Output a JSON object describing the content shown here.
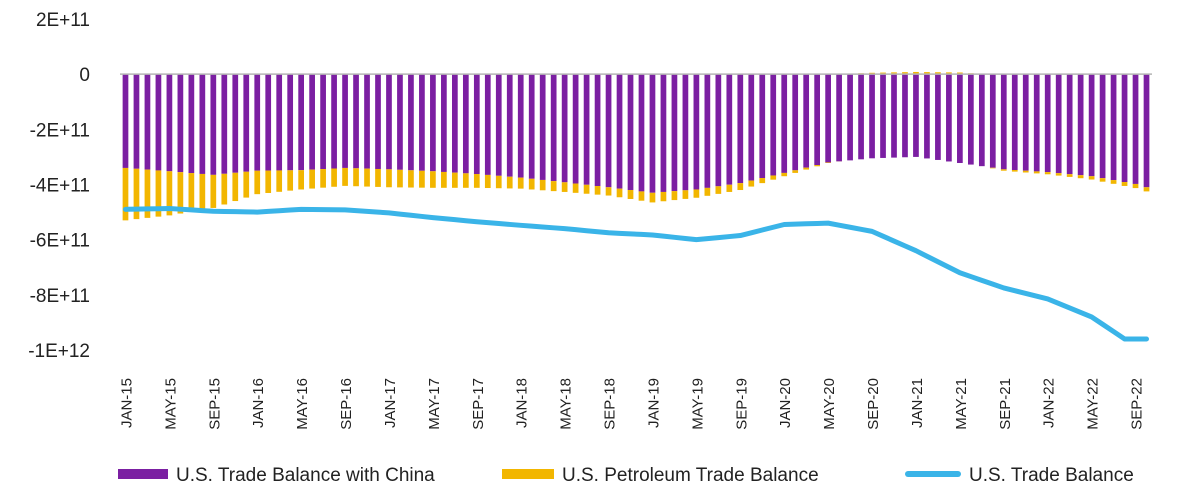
{
  "chart_data": {
    "type": "bar",
    "stacked": true,
    "grid": false,
    "legend_position": "bottom",
    "ylim": [
      -1000000000000,
      200000000000
    ],
    "y_ticks": [
      {
        "value": 200000000000,
        "label": "2E+11"
      },
      {
        "value": 0,
        "label": "0"
      },
      {
        "value": -200000000000,
        "label": "-2E+11"
      },
      {
        "value": -400000000000,
        "label": "-4E+11"
      },
      {
        "value": -600000000000,
        "label": "-6E+11"
      },
      {
        "value": -800000000000,
        "label": "-8E+11"
      },
      {
        "value": -1000000000000,
        "label": "-1E+12"
      }
    ],
    "x_ticks": [
      "JAN-15",
      "MAY-15",
      "SEP-15",
      "JAN-16",
      "MAY-16",
      "SEP-16",
      "JAN-17",
      "MAY-17",
      "SEP-17",
      "JAN-18",
      "MAY-18",
      "SEP-18",
      "JAN-19",
      "MAY-19",
      "SEP-19",
      "JAN-20",
      "MAY-20",
      "SEP-20",
      "JAN-21",
      "MAY-21",
      "SEP-21",
      "JAN-22",
      "MAY-22",
      "SEP-22"
    ],
    "months_per_tick": 4,
    "series": [
      {
        "name": "U.S. Trade Balance with China",
        "kind": "bar",
        "color": "#7B1FA2",
        "key_values_billions": [
          [
            0,
            -340
          ],
          [
            4,
            -352
          ],
          [
            8,
            -365
          ],
          [
            12,
            -350
          ],
          [
            16,
            -348
          ],
          [
            20,
            -340
          ],
          [
            24,
            -345
          ],
          [
            28,
            -352
          ],
          [
            32,
            -362
          ],
          [
            36,
            -375
          ],
          [
            40,
            -392
          ],
          [
            44,
            -410
          ],
          [
            48,
            -430
          ],
          [
            52,
            -418
          ],
          [
            56,
            -395
          ],
          [
            60,
            -358
          ],
          [
            64,
            -320
          ],
          [
            68,
            -305
          ],
          [
            72,
            -300
          ],
          [
            76,
            -322
          ],
          [
            80,
            -345
          ],
          [
            84,
            -355
          ],
          [
            88,
            -370
          ],
          [
            92,
            -398
          ],
          [
            93,
            -410
          ]
        ]
      },
      {
        "name": "U.S. Petroleum Trade Balance",
        "kind": "bar",
        "color": "#F2B600",
        "key_values_billions": [
          [
            0,
            -190
          ],
          [
            4,
            -160
          ],
          [
            8,
            -120
          ],
          [
            12,
            -85
          ],
          [
            16,
            -70
          ],
          [
            20,
            -65
          ],
          [
            24,
            -65
          ],
          [
            28,
            -60
          ],
          [
            32,
            -50
          ],
          [
            36,
            -40
          ],
          [
            40,
            -35
          ],
          [
            44,
            -30
          ],
          [
            48,
            -35
          ],
          [
            52,
            -30
          ],
          [
            56,
            -25
          ],
          [
            60,
            -12
          ],
          [
            64,
            -2
          ],
          [
            68,
            5
          ],
          [
            72,
            8
          ],
          [
            76,
            6
          ],
          [
            80,
            -5
          ],
          [
            84,
            -8
          ],
          [
            88,
            -12
          ],
          [
            92,
            -15
          ],
          [
            93,
            -15
          ]
        ]
      },
      {
        "name": "U.S. Trade Balance",
        "kind": "line",
        "color": "#3AB4E8",
        "key_values_billions": [
          [
            0,
            -490
          ],
          [
            4,
            -487
          ],
          [
            8,
            -497
          ],
          [
            12,
            -500
          ],
          [
            16,
            -490
          ],
          [
            20,
            -492
          ],
          [
            24,
            -503
          ],
          [
            28,
            -520
          ],
          [
            32,
            -535
          ],
          [
            36,
            -548
          ],
          [
            40,
            -560
          ],
          [
            44,
            -575
          ],
          [
            48,
            -583
          ],
          [
            52,
            -600
          ],
          [
            56,
            -585
          ],
          [
            60,
            -545
          ],
          [
            64,
            -540
          ],
          [
            68,
            -570
          ],
          [
            72,
            -640
          ],
          [
            76,
            -720
          ],
          [
            80,
            -775
          ],
          [
            84,
            -815
          ],
          [
            88,
            -880
          ],
          [
            91,
            -960
          ],
          [
            93,
            -960
          ]
        ]
      }
    ]
  }
}
